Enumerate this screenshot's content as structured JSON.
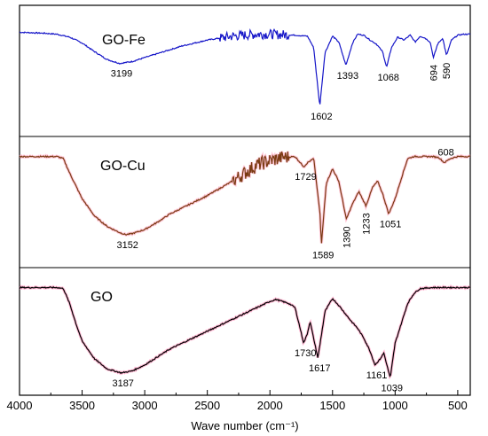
{
  "chart_data": {
    "type": "line",
    "xlabel": "Wave number (cm⁻¹)",
    "xlim": [
      4000,
      400
    ],
    "x_reversed": true,
    "x_ticks": [
      4000,
      3500,
      3000,
      2500,
      2000,
      1500,
      1000,
      500
    ],
    "x_tick_labels": [
      "4000",
      "3500",
      "3000",
      "2500",
      "2000",
      "1500",
      "1000",
      "500"
    ],
    "y_ticks_shown": false,
    "panels": [
      {
        "label": "GO-Fe",
        "color": "#1515c8",
        "highlight_color": null,
        "x": [
          4000,
          3900,
          3800,
          3700,
          3600,
          3500,
          3400,
          3300,
          3200,
          3100,
          3000,
          2900,
          2800,
          2700,
          2600,
          2500,
          2400,
          2300,
          2200,
          2100,
          2000,
          1900,
          1800,
          1700,
          1650,
          1602,
          1560,
          1500,
          1450,
          1393,
          1340,
          1300,
          1250,
          1200,
          1150,
          1100,
          1068,
          1030,
          980,
          930,
          880,
          840,
          800,
          760,
          720,
          694,
          660,
          620,
          590,
          550,
          500,
          450,
          400
        ],
        "y": [
          96,
          95.5,
          95,
          94,
          91,
          85,
          76,
          68,
          64,
          66,
          70,
          74,
          78,
          82,
          85,
          88,
          90,
          92,
          93,
          94,
          94,
          93.5,
          93,
          92,
          80,
          20,
          75,
          92,
          86,
          62,
          85,
          94,
          93,
          88,
          84,
          76,
          60,
          80,
          91,
          88,
          93,
          86,
          92,
          90,
          86,
          70,
          84,
          90,
          72,
          88,
          93,
          94,
          94
        ],
        "noise_region": [
          2400,
          1850
        ],
        "noise_amplitude": 5,
        "annotations": [
          {
            "text": "3199",
            "x": 3199,
            "side": "below",
            "rotate": false
          },
          {
            "text": "1602",
            "x": 1602,
            "side": "below",
            "rotate": false
          },
          {
            "text": "1393",
            "x": 1393,
            "side": "below",
            "rotate": false
          },
          {
            "text": "1068",
            "x": 1068,
            "side": "below",
            "rotate": false
          },
          {
            "text": "694",
            "x": 694,
            "side": "below",
            "rotate": true
          },
          {
            "text": "590",
            "x": 590,
            "side": "below",
            "rotate": true
          }
        ]
      },
      {
        "label": "GO-Cu",
        "color": "#7a3a12",
        "highlight_color": "#ff9bb8",
        "x": [
          4000,
          3900,
          3800,
          3700,
          3650,
          3600,
          3500,
          3400,
          3300,
          3200,
          3152,
          3100,
          3000,
          2900,
          2800,
          2700,
          2600,
          2500,
          2400,
          2300,
          2200,
          2100,
          2000,
          1900,
          1800,
          1729,
          1700,
          1650,
          1600,
          1589,
          1550,
          1500,
          1450,
          1390,
          1340,
          1290,
          1233,
          1180,
          1140,
          1100,
          1051,
          1000,
          950,
          900,
          850,
          800,
          750,
          700,
          650,
          608,
          560,
          500,
          450,
          400
        ],
        "y": [
          96,
          96,
          96,
          96,
          94,
          80,
          55,
          38,
          28,
          22,
          20,
          21,
          25,
          32,
          40,
          46,
          52,
          58,
          65,
          72,
          80,
          88,
          92,
          95,
          96,
          86,
          90,
          94,
          40,
          10,
          70,
          84,
          72,
          35,
          50,
          62,
          48,
          66,
          72,
          60,
          40,
          55,
          75,
          94,
          96,
          96,
          96,
          96,
          95,
          90,
          94,
          96,
          96,
          96
        ],
        "noise_region": [
          2300,
          1850
        ],
        "noise_amplitude": 7,
        "annotations": [
          {
            "text": "3152",
            "x": 3152,
            "side": "below",
            "rotate": false
          },
          {
            "text": "1729",
            "x": 1729,
            "side": "below",
            "rotate": false
          },
          {
            "text": "1589",
            "x": 1589,
            "side": "below",
            "rotate": false
          },
          {
            "text": "1390",
            "x": 1390,
            "side": "below",
            "rotate": true
          },
          {
            "text": "1233",
            "x": 1233,
            "side": "below",
            "rotate": true
          },
          {
            "text": "1051",
            "x": 1051,
            "side": "below",
            "rotate": false
          },
          {
            "text": "608",
            "x": 608,
            "side": "above",
            "rotate": false
          }
        ]
      },
      {
        "label": "GO",
        "color": "#000000",
        "highlight_color": "#ff7fb0",
        "x": [
          4000,
          3900,
          3800,
          3700,
          3650,
          3600,
          3550,
          3500,
          3400,
          3300,
          3187,
          3100,
          3000,
          2900,
          2800,
          2700,
          2600,
          2500,
          2400,
          2300,
          2200,
          2100,
          2000,
          1950,
          1900,
          1850,
          1800,
          1730,
          1700,
          1680,
          1617,
          1560,
          1500,
          1450,
          1400,
          1350,
          1300,
          1250,
          1200,
          1161,
          1120,
          1090,
          1060,
          1039,
          1000,
          950,
          900,
          850,
          800,
          700,
          600,
          500,
          400
        ],
        "y": [
          96,
          96,
          96,
          96,
          95,
          80,
          60,
          42,
          24,
          14,
          10,
          12,
          18,
          26,
          34,
          40,
          46,
          52,
          58,
          64,
          70,
          76,
          82,
          84,
          82,
          80,
          76,
          40,
          50,
          62,
          25,
          72,
          85,
          78,
          70,
          62,
          55,
          45,
          32,
          18,
          24,
          30,
          15,
          5,
          40,
          60,
          80,
          90,
          95,
          96,
          96,
          96,
          96
        ],
        "noise_region": null,
        "noise_amplitude": 0,
        "annotations": [
          {
            "text": "3187",
            "x": 3187,
            "side": "below",
            "rotate": false
          },
          {
            "text": "1730",
            "x": 1730,
            "side": "below",
            "rotate": false
          },
          {
            "text": "1617",
            "x": 1617,
            "side": "below",
            "rotate": false
          },
          {
            "text": "1161",
            "x": 1161,
            "side": "below",
            "rotate": false
          },
          {
            "text": "1039",
            "x": 1039,
            "side": "below",
            "rotate": false
          }
        ]
      }
    ]
  }
}
